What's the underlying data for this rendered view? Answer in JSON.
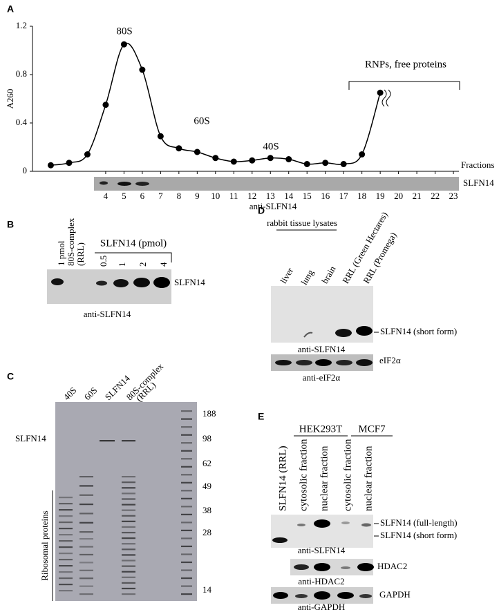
{
  "chart_data": {
    "type": "line",
    "panel": "A",
    "ylabel": "A260",
    "xlabel": "Fractions",
    "x": [
      1,
      2,
      3,
      4,
      5,
      6,
      7,
      8,
      9,
      10,
      11,
      12,
      13,
      14,
      15,
      16,
      17,
      18,
      19
    ],
    "values": [
      0.05,
      0.07,
      0.14,
      0.55,
      1.05,
      0.84,
      0.29,
      0.19,
      0.16,
      0.11,
      0.08,
      0.09,
      0.11,
      0.1,
      0.06,
      0.07,
      0.06,
      0.14,
      0.65
    ],
    "color": "#000000",
    "ylim": [
      0,
      1.2
    ],
    "yticks": [
      0,
      0.4,
      0.8,
      1.2
    ],
    "xlim": [
      0,
      23.3
    ],
    "xticks": [
      4,
      5,
      6,
      7,
      8,
      9,
      10,
      11,
      12,
      13,
      14,
      15,
      16,
      17,
      18,
      19,
      20,
      21,
      22,
      23
    ],
    "annotations": [
      "80S",
      "60S",
      "40S",
      "RNPs, free proteins"
    ],
    "blot_label": "SLFN14",
    "blot_antibody": "anti-SLFN14",
    "grid": false
  },
  "panel_b": {
    "letter": "B",
    "lanes": [
      "1 pmol",
      "80S-complex",
      "(RRL)"
    ],
    "group": "SLFN14 (pmol)",
    "amounts": [
      "0.5",
      "1",
      "2",
      "4"
    ],
    "band_label": "SLFN14",
    "antibody": "anti-SLFN14"
  },
  "panel_c": {
    "letter": "C",
    "lanes": [
      "40S",
      "60S",
      "SLFN14",
      "80S-complex",
      "(RRL)"
    ],
    "markers": [
      188,
      98,
      62,
      49,
      38,
      28,
      14
    ],
    "band_label": "SLFN14",
    "bracket_label": "Ribosomal proteins"
  },
  "panel_d": {
    "letter": "D",
    "group": "rabbit tissue lysates",
    "lanes": [
      "liver",
      "lung",
      "brain",
      "RRL (Green Hectares)",
      "RRL (Promega)"
    ],
    "band_label": "SLFN14 (short form)",
    "antibody": "anti-SLFN14",
    "loading_label": "eIF2α",
    "loading_antibody": "anti-eIF2α"
  },
  "panel_e": {
    "letter": "E",
    "groups": [
      "HEK293T",
      "MCF7"
    ],
    "lanes": [
      "SLFN14 (RRL)",
      "cytosolic fraction",
      "nuclear fraction",
      "cytosolic fraction",
      "nuclear fraction"
    ],
    "band_labels": [
      "SLFN14 (full-length)",
      "SLFN14 (short form)"
    ],
    "antibody": "anti-SLFN14",
    "loading": [
      {
        "label": "HDAC2",
        "antibody": "anti-HDAC2"
      },
      {
        "label": "GAPDH",
        "antibody": "anti-GAPDH"
      }
    ]
  }
}
